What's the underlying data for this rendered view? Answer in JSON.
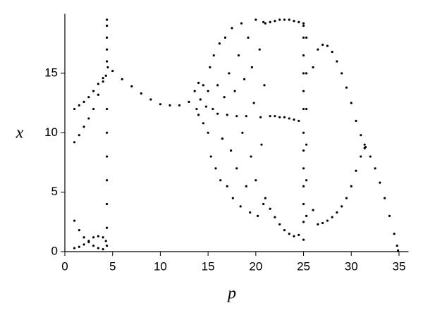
{
  "chart_data": {
    "type": "scatter",
    "xlabel": "p",
    "ylabel": "x",
    "color": "#000000",
    "xlim": [
      0,
      36
    ],
    "ylim": [
      0,
      20
    ],
    "xticks": [
      0,
      5,
      10,
      15,
      20,
      25,
      30,
      35
    ],
    "yticks": [
      0,
      5,
      10,
      15
    ],
    "x": [
      1.0,
      1.5,
      2.0,
      2.5,
      3.0,
      3.5,
      4.0,
      4.3,
      1.0,
      1.5,
      2.0,
      2.5,
      3.0,
      3.5,
      4.0,
      1.0,
      1.5,
      2.0,
      2.5,
      3.0,
      3.5,
      4.0,
      4.3,
      1.0,
      1.5,
      2.0,
      2.5,
      3.0,
      3.5,
      4.0,
      4.4,
      4.4,
      4.4,
      4.4,
      4.4,
      4.4,
      4.4,
      4.4,
      4.4,
      4.4,
      4.4,
      4.4,
      4.5,
      5,
      6,
      7,
      8,
      9,
      10,
      11,
      12,
      13,
      13.6,
      13.8,
      14.0,
      14.0,
      14.2,
      14.5,
      14.5,
      14.8,
      15.0,
      15.0,
      15.2,
      15.3,
      15.5,
      15.6,
      15.8,
      16.0,
      16.0,
      16.2,
      16.3,
      16.5,
      16.7,
      16.8,
      17.0,
      17.0,
      17.2,
      17.4,
      17.5,
      17.6,
      17.8,
      18.0,
      18.0,
      18.2,
      18.4,
      18.5,
      18.6,
      18.8,
      19.0,
      19.0,
      19.2,
      19.4,
      19.5,
      19.6,
      19.8,
      20.0,
      20.0,
      20.2,
      20.4,
      20.5,
      20.6,
      20.8,
      20.8,
      20.9,
      21,
      21.5,
      22,
      22.5,
      23,
      23.5,
      24,
      24.5,
      25,
      21.5,
      22,
      22.5,
      23,
      23.5,
      24,
      24.5,
      21,
      21.5,
      22,
      22.5,
      23,
      23.5,
      24,
      24.5,
      25,
      25,
      25,
      25,
      25,
      25,
      25,
      25,
      25,
      25,
      25,
      25,
      25,
      25.3,
      25.3,
      25.3,
      25.3,
      25.3,
      25.3,
      26,
      26.5,
      27,
      27.5,
      28,
      28.5,
      29,
      29.5,
      30,
      30.5,
      31,
      31.4,
      26,
      26.5,
      27,
      27.5,
      28,
      28.5,
      29,
      29.5,
      30,
      30.5,
      31,
      31.4,
      31.5,
      32,
      32.5,
      33,
      33.5,
      34,
      34.5,
      34.8,
      34.9
    ],
    "values": [
      12.0,
      12.3,
      12.6,
      13.0,
      13.5,
      14.1,
      14.6,
      14.8,
      9.2,
      9.8,
      10.5,
      11.2,
      12.0,
      13.2,
      14.3,
      0.3,
      0.4,
      0.6,
      0.9,
      1.2,
      1.3,
      1.2,
      0.9,
      2.6,
      1.8,
      1.2,
      0.8,
      0.5,
      0.3,
      0.2,
      0.5,
      2,
      4,
      6,
      8,
      10,
      12,
      16,
      17,
      18,
      19,
      19.5,
      15.5,
      15.2,
      14.5,
      13.9,
      13.3,
      12.8,
      12.4,
      12.3,
      12.3,
      12.6,
      13.5,
      12.0,
      14.2,
      11.5,
      12.8,
      14.0,
      10.8,
      12.2,
      13.5,
      10.0,
      15.5,
      8.0,
      12.0,
      16.5,
      7.0,
      14.0,
      11.6,
      17.5,
      6.0,
      9.5,
      13.0,
      18.0,
      5.5,
      11.5,
      15.0,
      8.5,
      18.8,
      4.5,
      13.5,
      11.4,
      7.0,
      16.5,
      3.8,
      19.2,
      10.0,
      14.5,
      5.5,
      11.4,
      18.0,
      3.3,
      8.0,
      15.5,
      12.5,
      19.5,
      6.0,
      3.0,
      17.0,
      11.3,
      9.0,
      19.3,
      4.0,
      14.0,
      19.2,
      19.3,
      19.4,
      19.5,
      19.5,
      19.5,
      19.4,
      19.3,
      19.2,
      11.4,
      11.4,
      11.3,
      11.3,
      11.2,
      11.1,
      11.0,
      4.5,
      3.6,
      2.9,
      2.3,
      1.8,
      1.5,
      1.3,
      1.4,
      1.0,
      2.5,
      4,
      5.5,
      7,
      8.5,
      10,
      12,
      13.5,
      15,
      16.5,
      18,
      19,
      3,
      6,
      9,
      12,
      15,
      18,
      15.5,
      17.0,
      17.4,
      17.3,
      16.8,
      16.0,
      15.0,
      13.8,
      12.5,
      11.0,
      9.8,
      9.0,
      3.5,
      2.3,
      2.4,
      2.6,
      2.9,
      3.3,
      3.8,
      4.5,
      5.5,
      6.8,
      8.0,
      8.7,
      8.8,
      8.0,
      7.0,
      5.8,
      4.5,
      3.0,
      1.5,
      0.5,
      0.1
    ]
  }
}
